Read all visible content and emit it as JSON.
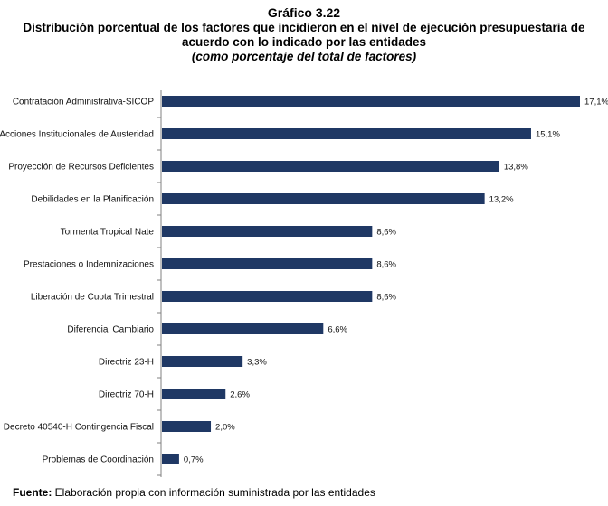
{
  "header": {
    "line1": "Gráfico 3.22",
    "line2": "Distribución porcentual de los factores que incidieron en el nivel de ejecución presupuestaria de",
    "line3": "acuerdo con lo indicado por las entidades",
    "line4": "(como porcentaje del total de factores)"
  },
  "source": {
    "prefix": "Fuente:",
    "text": " Elaboración propia con información suministrada por las entidades"
  },
  "colors": {
    "bar": "#1f3864",
    "axis": "#808080"
  },
  "chart_data": {
    "type": "bar",
    "orientation": "horizontal",
    "title": "Distribución porcentual de los factores que incidieron en el nivel de ejecución presupuestaria de acuerdo con lo indicado por las entidades",
    "subtitle": "(como porcentaje del total de factores)",
    "categories": [
      "Contratación Administrativa-SICOP",
      "Acciones Institucionales de Austeridad",
      "Proyección de Recursos Deficientes",
      "Debilidades en la Planificación",
      "Tormenta Tropical Nate",
      "Prestaciones o Indemnizaciones",
      "Liberación de Cuota Trimestral",
      "Diferencial Cambiario",
      "Directriz 23-H",
      "Directriz 70-H",
      "Decreto 40540-H Contingencia Fiscal",
      "Problemas de Coordinación"
    ],
    "values": [
      17.1,
      15.1,
      13.8,
      13.2,
      8.6,
      8.6,
      8.6,
      6.6,
      3.3,
      2.6,
      2.0,
      0.7
    ],
    "value_labels": [
      "17,1%",
      "15,1%",
      "13,8%",
      "13,2%",
      "8,6%",
      "8,6%",
      "8,6%",
      "6,6%",
      "3,3%",
      "2,6%",
      "2,0%",
      "0,7%"
    ],
    "xlim": [
      0,
      17.1
    ],
    "grid": false,
    "legend": "none"
  }
}
